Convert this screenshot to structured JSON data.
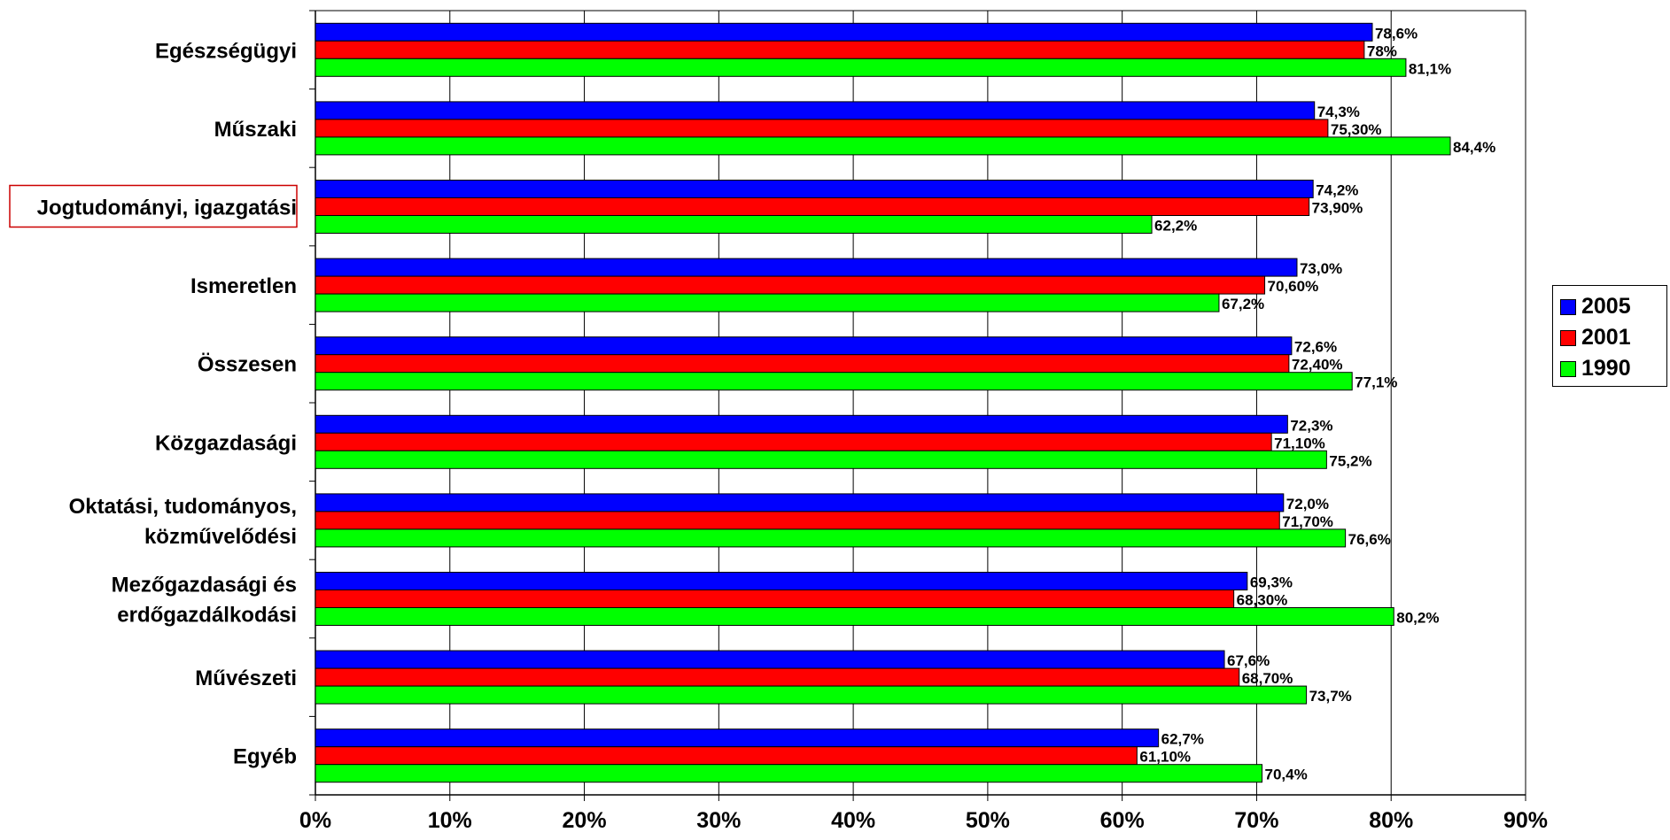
{
  "chart_data": {
    "type": "bar",
    "orientation": "horizontal",
    "categories": [
      "Egészségügyi",
      "Műszaki",
      "Jogtudományi, igazgatási",
      "Ismeretlen",
      "Összesen",
      "Közgazdasági",
      "Oktatási, tudományos, közművelődési",
      "Mezőgazdasági és erdőgazdálkodási",
      "Művészeti",
      "Egyéb"
    ],
    "category_lines": [
      [
        "Egészségügyi"
      ],
      [
        "Műszaki"
      ],
      [
        "Jogtudományi, igazgatási"
      ],
      [
        "Ismeretlen"
      ],
      [
        "Összesen"
      ],
      [
        "Közgazdasági"
      ],
      [
        "Oktatási, tudományos,",
        "közművelődési"
      ],
      [
        "Mezőgazdasági és",
        "erdőgazdálkodási"
      ],
      [
        "Művészeti"
      ],
      [
        "Egyéb"
      ]
    ],
    "highlighted_category": "Jogtudományi, igazgatási",
    "series": [
      {
        "name": "2005",
        "color": "#0000ff",
        "values": [
          78.6,
          74.3,
          74.2,
          73.0,
          72.6,
          72.3,
          72.0,
          69.3,
          67.6,
          62.7
        ],
        "labels": [
          "78,6%",
          "74,3%",
          "74,2%",
          "73,0%",
          "72,6%",
          "72,3%",
          "72,0%",
          "69,3%",
          "67,6%",
          "62,7%"
        ]
      },
      {
        "name": "2001",
        "color": "#ff0000",
        "values": [
          78,
          75.3,
          73.9,
          70.6,
          72.4,
          71.1,
          71.7,
          68.3,
          68.7,
          61.1
        ],
        "labels": [
          "78%",
          "75,30%",
          "73,90%",
          "70,60%",
          "72,40%",
          "71,10%",
          "71,70%",
          "68,30%",
          "68,70%",
          "61,10%"
        ]
      },
      {
        "name": "1990",
        "color": "#00ff00",
        "values": [
          81.1,
          84.4,
          62.2,
          67.2,
          77.1,
          75.2,
          76.6,
          80.2,
          73.7,
          70.4
        ],
        "labels": [
          "81,1%",
          "84,4%",
          "62,2%",
          "67,2%",
          "77,1%",
          "75,2%",
          "76,6%",
          "80,2%",
          "73,7%",
          "70,4%"
        ]
      }
    ],
    "x_ticks": [
      "0%",
      "10%",
      "20%",
      "30%",
      "40%",
      "50%",
      "60%",
      "70%",
      "80%",
      "90%"
    ],
    "xlim": [
      0,
      90
    ],
    "title": "",
    "xlabel": "",
    "ylabel": "",
    "grid": true,
    "legend_position": "right"
  }
}
